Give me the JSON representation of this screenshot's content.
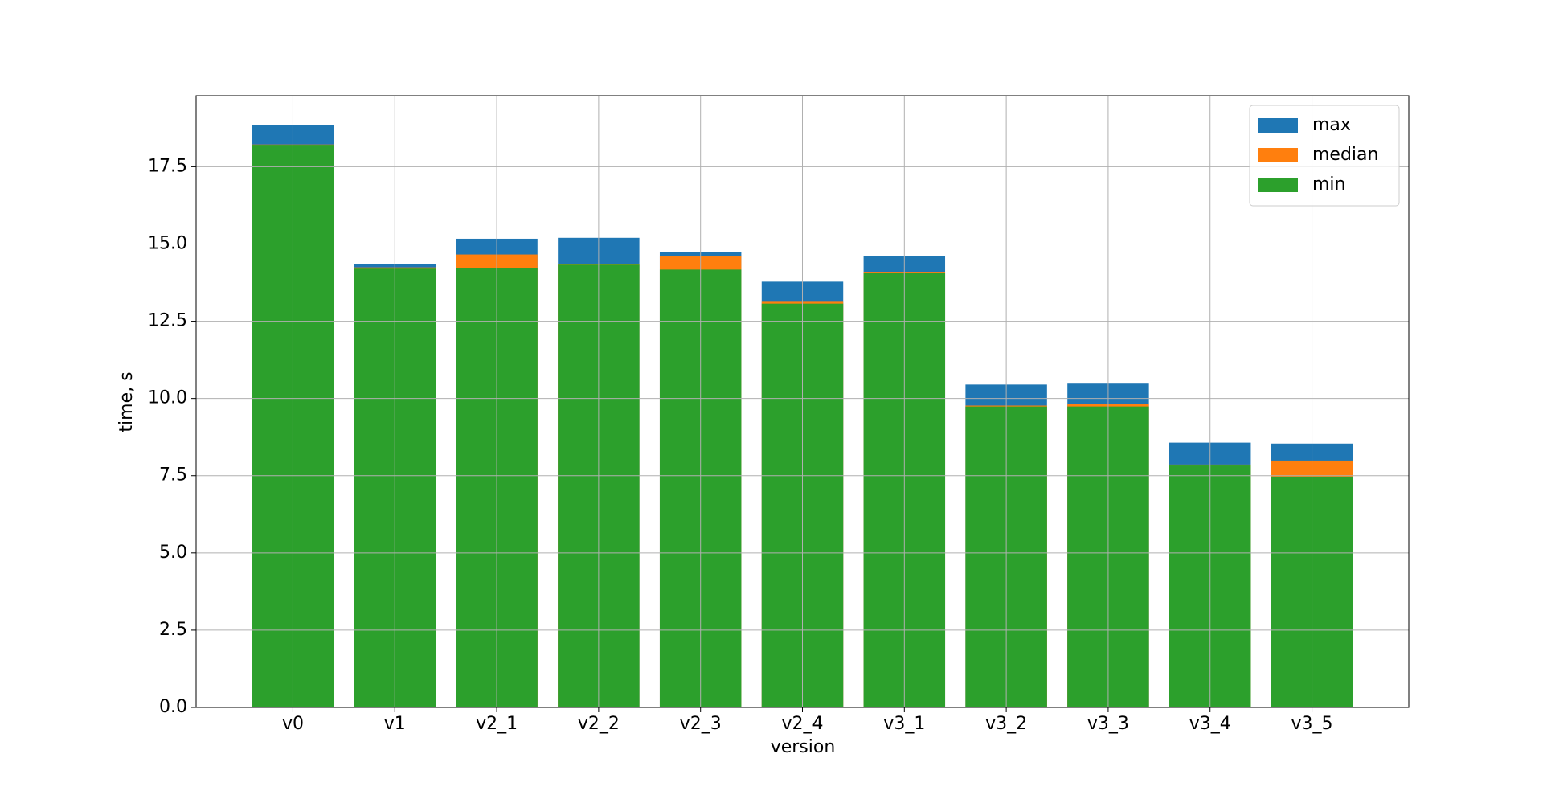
{
  "chart_data": {
    "type": "bar",
    "overlap": true,
    "x_label": "version",
    "y_label": "time, s",
    "categories": [
      "v0",
      "v1",
      "v2_1",
      "v2_2",
      "v2_3",
      "v2_4",
      "v3_1",
      "v3_2",
      "v3_3",
      "v3_4",
      "v3_5"
    ],
    "series": [
      {
        "name": "max",
        "color": "#1f77b4",
        "values": [
          18.86,
          14.36,
          15.17,
          15.2,
          14.75,
          13.78,
          14.62,
          10.45,
          10.48,
          8.57,
          8.54
        ]
      },
      {
        "name": "median",
        "color": "#ff7f0e",
        "values": [
          18.22,
          14.24,
          14.66,
          14.36,
          14.62,
          13.13,
          14.1,
          9.77,
          9.83,
          7.86,
          7.99
        ]
      },
      {
        "name": "min",
        "color": "#2ca02c",
        "values": [
          18.21,
          14.2,
          14.23,
          14.33,
          14.17,
          13.07,
          14.07,
          9.74,
          9.74,
          7.83,
          7.47
        ]
      }
    ],
    "ylim": [
      0,
      19.8
    ],
    "yticks": [
      {
        "value": 0,
        "label": "0.0"
      },
      2.5,
      {
        "value": 5,
        "label": "5.0"
      },
      7.5,
      {
        "value": 10,
        "label": "10.0"
      },
      12.5,
      {
        "value": 15,
        "label": "15.0"
      },
      17.5
    ],
    "grid": true,
    "legend": "upper right"
  }
}
